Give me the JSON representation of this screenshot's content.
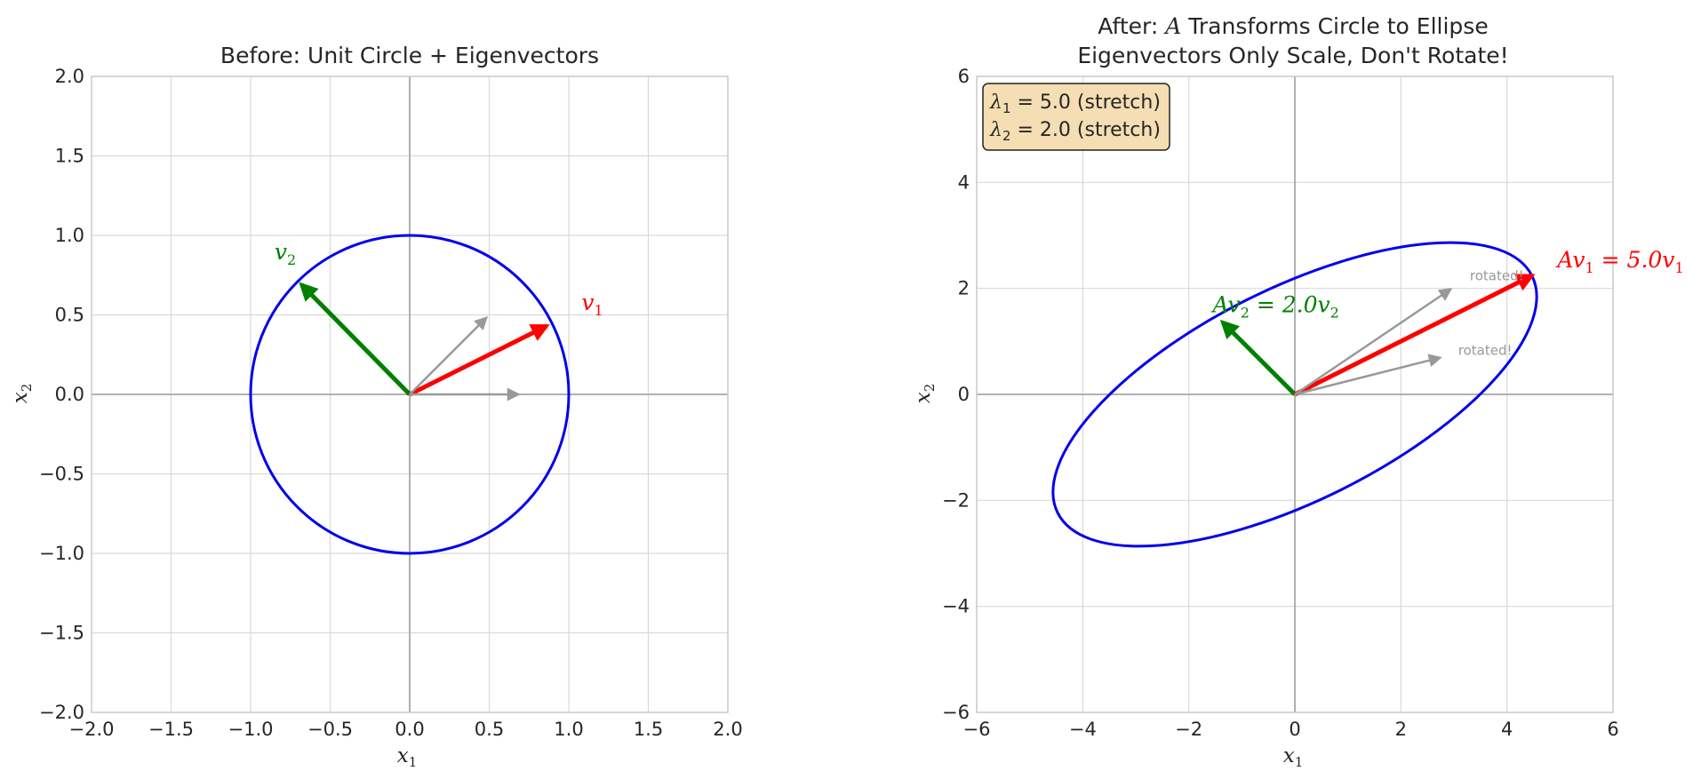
{
  "chart_data": [
    {
      "type": "line",
      "title": "Before: Unit Circle + Eigenvectors",
      "xlabel": "x",
      "xlabel_sub": "1",
      "ylabel": "x",
      "ylabel_sub": "2",
      "xlim": [
        -2,
        2
      ],
      "ylim": [
        -2,
        2
      ],
      "xticks": [
        -2.0,
        -1.5,
        -1.0,
        -0.5,
        0.0,
        0.5,
        1.0,
        1.5,
        2.0
      ],
      "yticks": [
        -2.0,
        -1.5,
        -1.0,
        -0.5,
        0.0,
        0.5,
        1.0,
        1.5,
        2.0
      ],
      "tick_format": "1dp",
      "grid": true,
      "curve": {
        "name": "unit-circle",
        "shape": "ellipse",
        "cx": 0,
        "cy": 0,
        "rx": 1,
        "ry": 1,
        "angle_deg": 0,
        "color": "#0000ee"
      },
      "vectors": [
        {
          "name": "v2",
          "dx": -0.68,
          "dy": 0.69,
          "color": "#008000",
          "width": 5,
          "label": "v",
          "label_sub": "2",
          "label_x": -0.85,
          "label_y": 0.85
        },
        {
          "name": "v1",
          "dx": 0.86,
          "dy": 0.43,
          "color": "#ff0000",
          "width": 5,
          "label": "v",
          "label_sub": "1",
          "label_x": 1.08,
          "label_y": 0.53
        },
        {
          "name": "gray-diagonal",
          "dx": 0.48,
          "dy": 0.48,
          "color": "#999999",
          "width": 2.5
        },
        {
          "name": "gray-horizontal",
          "dx": 0.68,
          "dy": 0.0,
          "color": "#999999",
          "width": 2.5
        }
      ]
    },
    {
      "type": "line",
      "title_line1_pre": "After: ",
      "title_line1_var": "A",
      "title_line1_post": " Transforms Circle to Ellipse",
      "title_line2": "Eigenvectors Only Scale, Don't Rotate!",
      "xlabel": "x",
      "xlabel_sub": "1",
      "ylabel": "x",
      "ylabel_sub": "2",
      "xlim": [
        -6,
        6
      ],
      "ylim": [
        -6,
        6
      ],
      "xticks": [
        -6,
        -4,
        -2,
        0,
        2,
        4,
        6
      ],
      "yticks": [
        -6,
        -4,
        -2,
        0,
        2,
        4,
        6
      ],
      "tick_format": "int",
      "grid": true,
      "curve": {
        "name": "ellipse",
        "shape": "ellipse",
        "cx": 0,
        "cy": 0,
        "rx": 5.0,
        "ry": 2.0,
        "angle_deg": 26.57,
        "color": "#0000ee"
      },
      "vectors": [
        {
          "name": "Av2",
          "dx": -1.36,
          "dy": 1.36,
          "color": "#008000",
          "width": 5,
          "label_math": "Av",
          "label_sub": "2",
          "label_rest": " = 2.0v",
          "label_sub2": "2",
          "label_x": -1.55,
          "label_y": 1.55
        },
        {
          "name": "Av1",
          "dx": 4.47,
          "dy": 2.24,
          "color": "#ff0000",
          "width": 5,
          "label_math": "Av",
          "label_sub": "1",
          "label_rest": " = 5.0v",
          "label_sub2": "1",
          "label_x": 4.95,
          "label_y": 2.4
        },
        {
          "name": "gray-rotated-1",
          "dx": 2.93,
          "dy": 1.98,
          "color": "#999999",
          "width": 2.5,
          "note": "rotated!",
          "note_x": 3.3,
          "note_y": 2.15
        },
        {
          "name": "gray-rotated-2",
          "dx": 2.73,
          "dy": 0.69,
          "color": "#999999",
          "width": 2.5,
          "note": "rotated!",
          "note_x": 3.08,
          "note_y": 0.75
        }
      ],
      "info_box": {
        "lines": [
          {
            "sym": "λ",
            "sub": "1",
            "text": " = 5.0 (stretch)"
          },
          {
            "sym": "λ",
            "sub": "2",
            "text": " = 2.0 (stretch)"
          }
        ],
        "bg": "#f5deb3",
        "border": "#222222"
      }
    }
  ]
}
